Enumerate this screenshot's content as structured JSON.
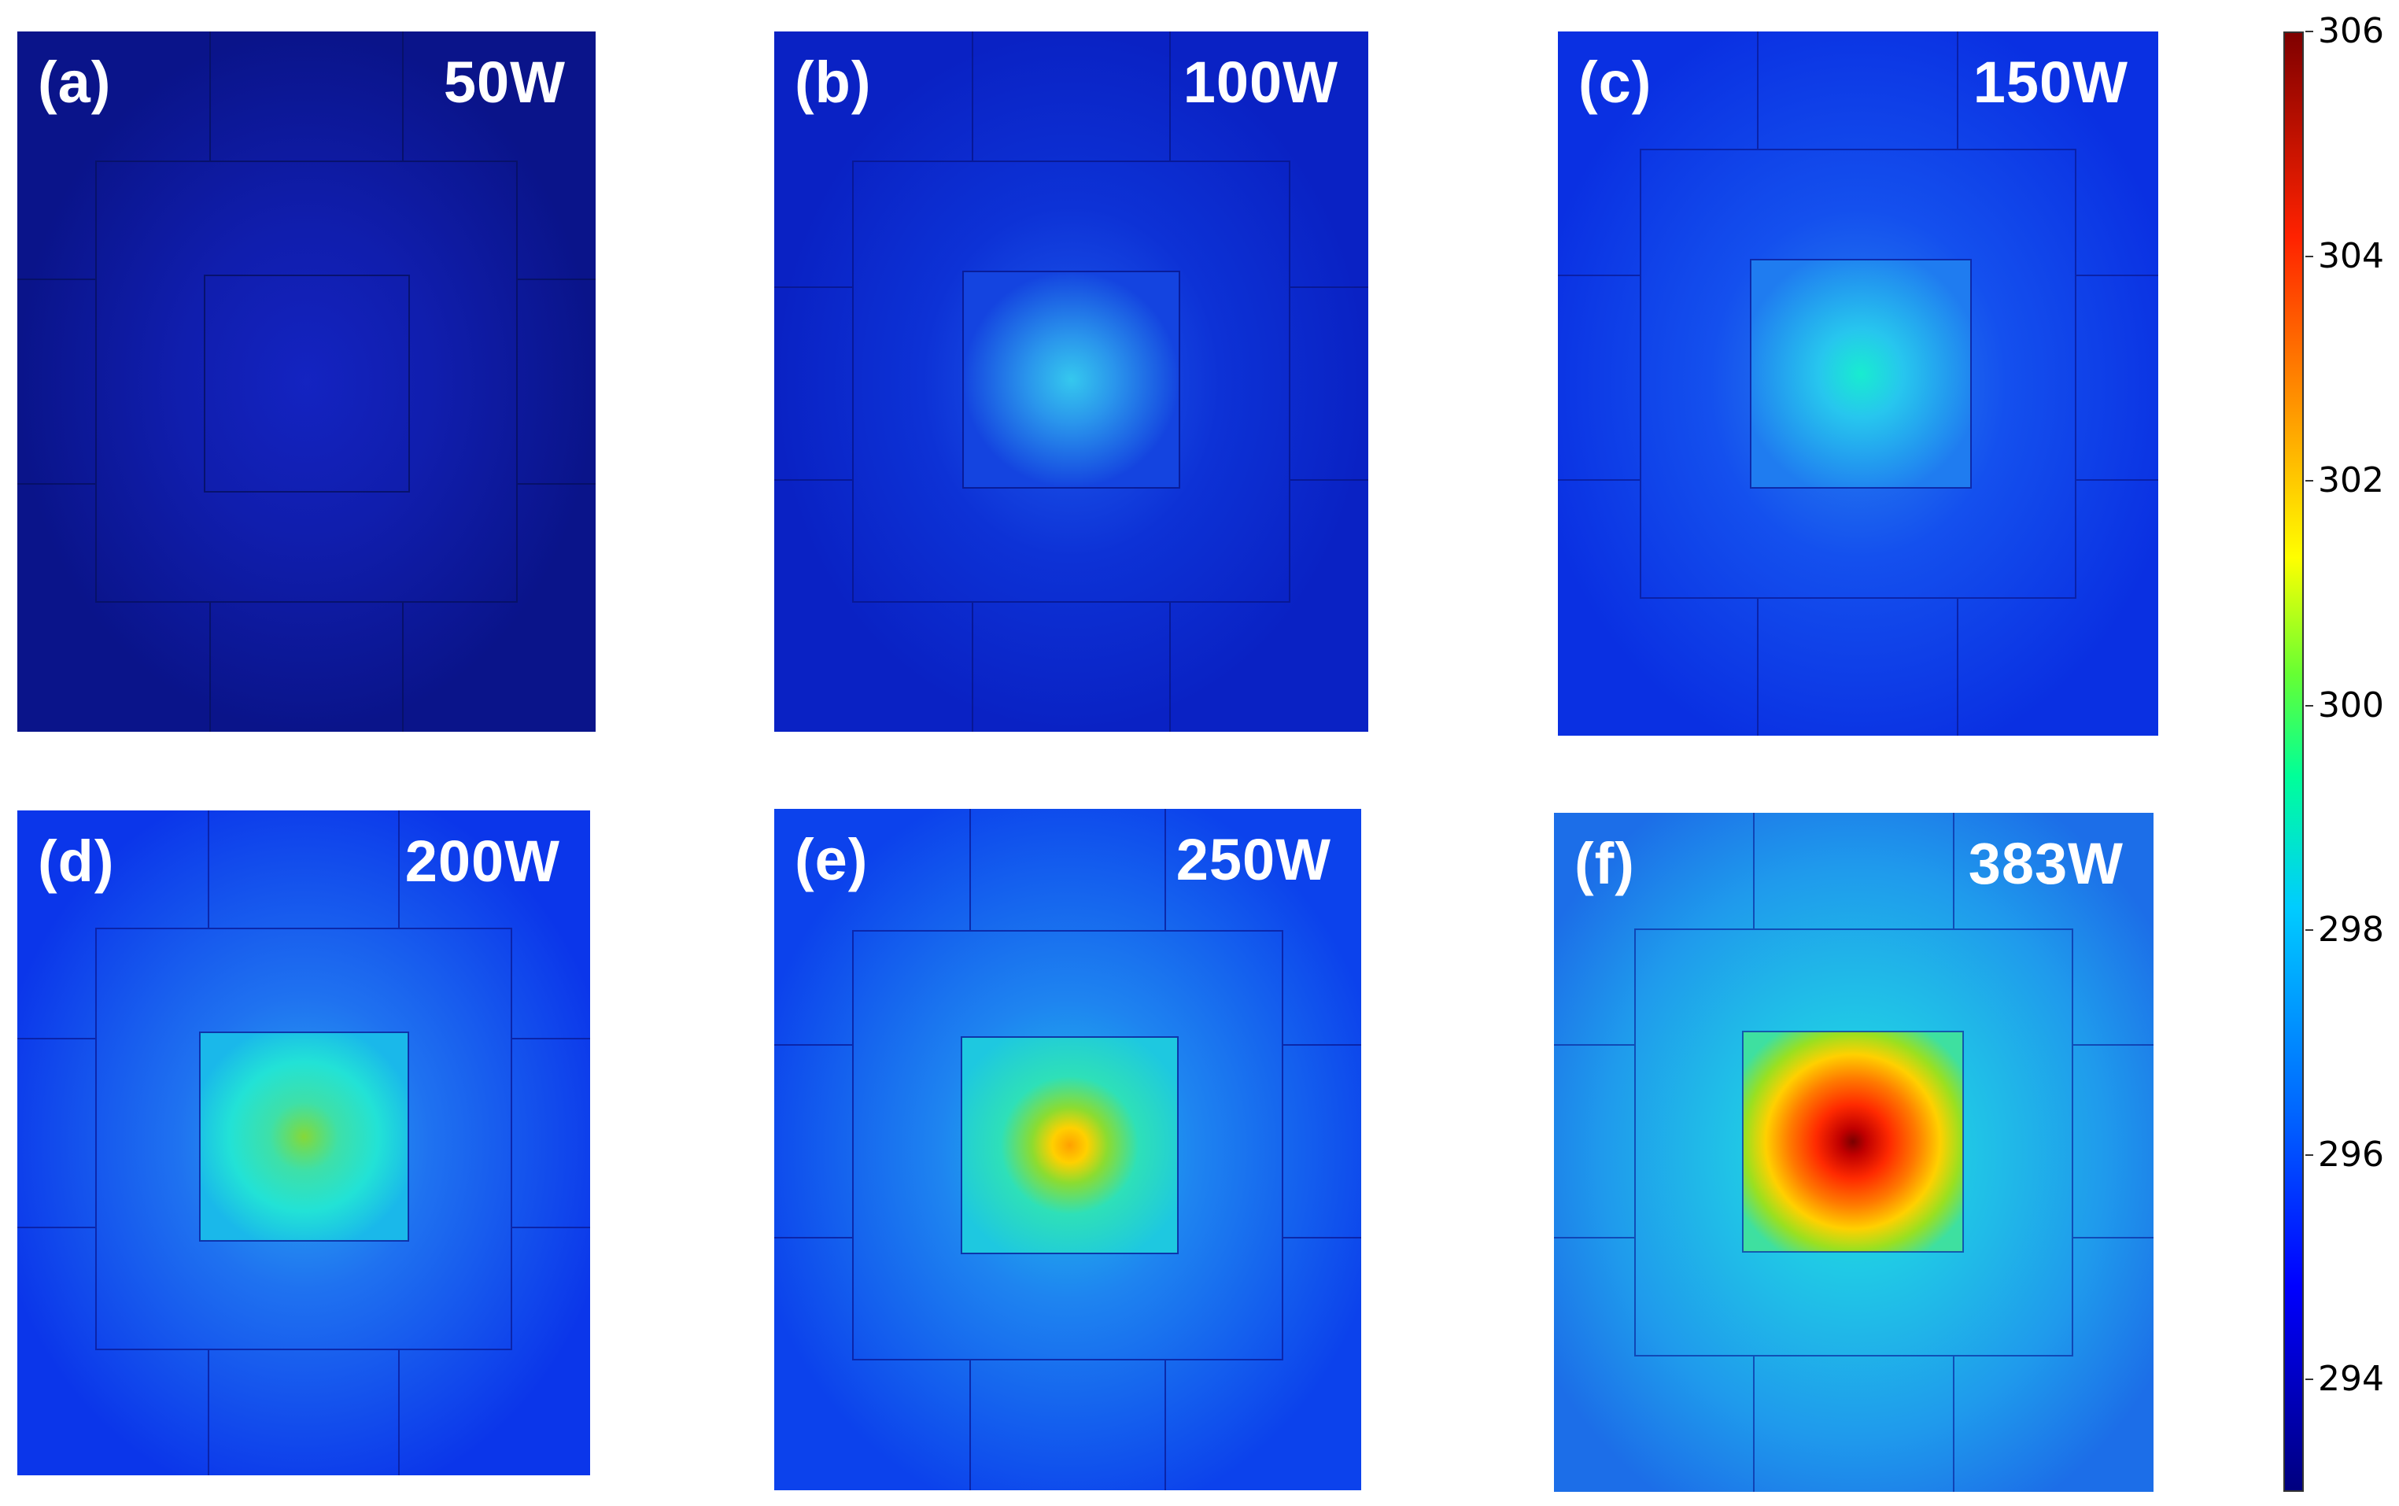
{
  "panels": [
    {
      "id": "a",
      "tag": "(a)",
      "power": "50W",
      "background": "#0a148a",
      "center": "#1626d6",
      "glow": 0.0
    },
    {
      "id": "b",
      "tag": "(b)",
      "power": "100W",
      "background": "#0a22cc",
      "center": "#2fc0ee",
      "glow": 0.12
    },
    {
      "id": "c",
      "tag": "(c)",
      "power": "150W",
      "background": "#0a30e6",
      "center": "#1be8d0",
      "glow": 0.25
    },
    {
      "id": "d",
      "tag": "(d)",
      "power": "200W",
      "background": "#0b3aee",
      "center": "#7cd840",
      "glow": 0.4
    },
    {
      "id": "e",
      "tag": "(e)",
      "power": "250W",
      "background": "#0c44ee",
      "center": "#ffa600",
      "glow": 0.55
    },
    {
      "id": "f",
      "tag": "(f)",
      "power": "383W",
      "background": "#1d70e8",
      "center": "#8a0000",
      "glow": 0.8
    }
  ],
  "colorbar": {
    "min": 293,
    "max": 306,
    "ticks": [
      "294",
      "296",
      "298",
      "300",
      "302",
      "304",
      "306"
    ]
  }
}
